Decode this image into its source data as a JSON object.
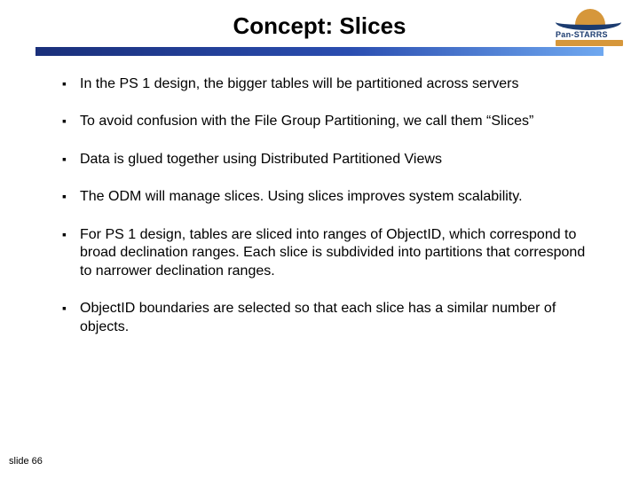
{
  "title": "Concept: Slices",
  "logo": {
    "text": "Pan-STARRS"
  },
  "bullets": [
    {
      "text": "In the PS 1 design, the bigger tables will be partitioned across servers"
    },
    {
      "text": "To avoid confusion with the File Group Partitioning, we call them “Slices”"
    },
    {
      "text": "Data is glued together using Distributed Partitioned Views"
    },
    {
      "text": "The ODM will manage slices. Using slices improves system scalability."
    },
    {
      "text": "For PS 1 design, tables are sliced into ranges of ObjectID, which correspond to broad declination ranges. Each slice is subdivided into partitions that correspond to narrower declination ranges."
    },
    {
      "text": "ObjectID boundaries are selected so that each slice has a similar number of objects."
    }
  ],
  "footer": "slide 66",
  "style": {
    "background": "#ffffff",
    "title_color": "#000000",
    "title_fontsize": 26,
    "accent_gradient": [
      "#1a2f7a",
      "#2a4db0",
      "#6fa8f0"
    ],
    "bullet_marker": "▪",
    "bullet_fontsize": 16,
    "bullet_color": "#000000",
    "footer_fontsize": 11,
    "logo_colors": {
      "primary": "#1b3b6f",
      "accent": "#d6973b"
    }
  }
}
